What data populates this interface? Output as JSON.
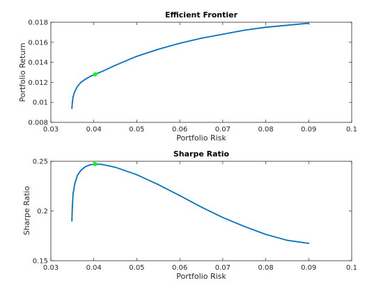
{
  "chart_data": [
    {
      "type": "line",
      "title": "Efficient Frontier",
      "xlabel": "Portfolio Risk",
      "ylabel": "Portfolio Return",
      "xlim": [
        0.03,
        0.1
      ],
      "ylim": [
        0.008,
        0.018
      ],
      "xticks": [
        0.03,
        0.04,
        0.05,
        0.06,
        0.07,
        0.08,
        0.09,
        0.1
      ],
      "yticks": [
        0.008,
        0.01,
        0.012,
        0.014,
        0.016,
        0.018
      ],
      "xtick_labels": [
        "0.03",
        "0.04",
        "0.05",
        "0.06",
        "0.07",
        "0.08",
        "0.09",
        "0.1"
      ],
      "ytick_labels": [
        "0.008",
        "0.01",
        "0.012",
        "0.014",
        "0.016",
        "0.018"
      ],
      "grid": false,
      "line_color": "#0072BD",
      "marker_color": "#00FF00",
      "series": [
        {
          "x": [
            0.0349,
            0.035,
            0.0352,
            0.0356,
            0.0362,
            0.037,
            0.038,
            0.0392,
            0.0403,
            0.042,
            0.045,
            0.05,
            0.055,
            0.06,
            0.065,
            0.07,
            0.075,
            0.08,
            0.085,
            0.09
          ],
          "y": [
            0.0094,
            0.01,
            0.0106,
            0.0111,
            0.0116,
            0.012,
            0.0123,
            0.0126,
            0.0128,
            0.0131,
            0.0137,
            0.0146,
            0.0153,
            0.0159,
            0.0164,
            0.0168,
            0.0172,
            0.0175,
            0.0177,
            0.0179
          ]
        }
      ],
      "highlight_point": {
        "x": 0.0403,
        "y": 0.0128
      }
    },
    {
      "type": "line",
      "title": "Sharpe Ratio",
      "xlabel": "Portfolio Risk",
      "ylabel": "Sharpe Ratio",
      "xlim": [
        0.03,
        0.1
      ],
      "ylim": [
        0.15,
        0.25
      ],
      "xticks": [
        0.03,
        0.04,
        0.05,
        0.06,
        0.07,
        0.08,
        0.09,
        0.1
      ],
      "yticks": [
        0.15,
        0.2,
        0.25
      ],
      "xtick_labels": [
        "0.03",
        "0.04",
        "0.05",
        "0.06",
        "0.07",
        "0.08",
        "0.09",
        "0.1"
      ],
      "ytick_labels": [
        "0.15",
        "0.2",
        "0.25"
      ],
      "grid": false,
      "line_color": "#0072BD",
      "marker_color": "#00FF00",
      "series": [
        {
          "x": [
            0.0349,
            0.035,
            0.0352,
            0.0356,
            0.0362,
            0.037,
            0.038,
            0.0392,
            0.0403,
            0.042,
            0.045,
            0.05,
            0.055,
            0.06,
            0.065,
            0.07,
            0.075,
            0.08,
            0.085,
            0.09
          ],
          "y": [
            0.19,
            0.205,
            0.218,
            0.228,
            0.236,
            0.241,
            0.2445,
            0.2465,
            0.2472,
            0.2468,
            0.244,
            0.2365,
            0.2265,
            0.2155,
            0.204,
            0.1935,
            0.1845,
            0.1765,
            0.1705,
            0.1675
          ]
        }
      ],
      "highlight_point": {
        "x": 0.0403,
        "y": 0.2472
      }
    }
  ]
}
